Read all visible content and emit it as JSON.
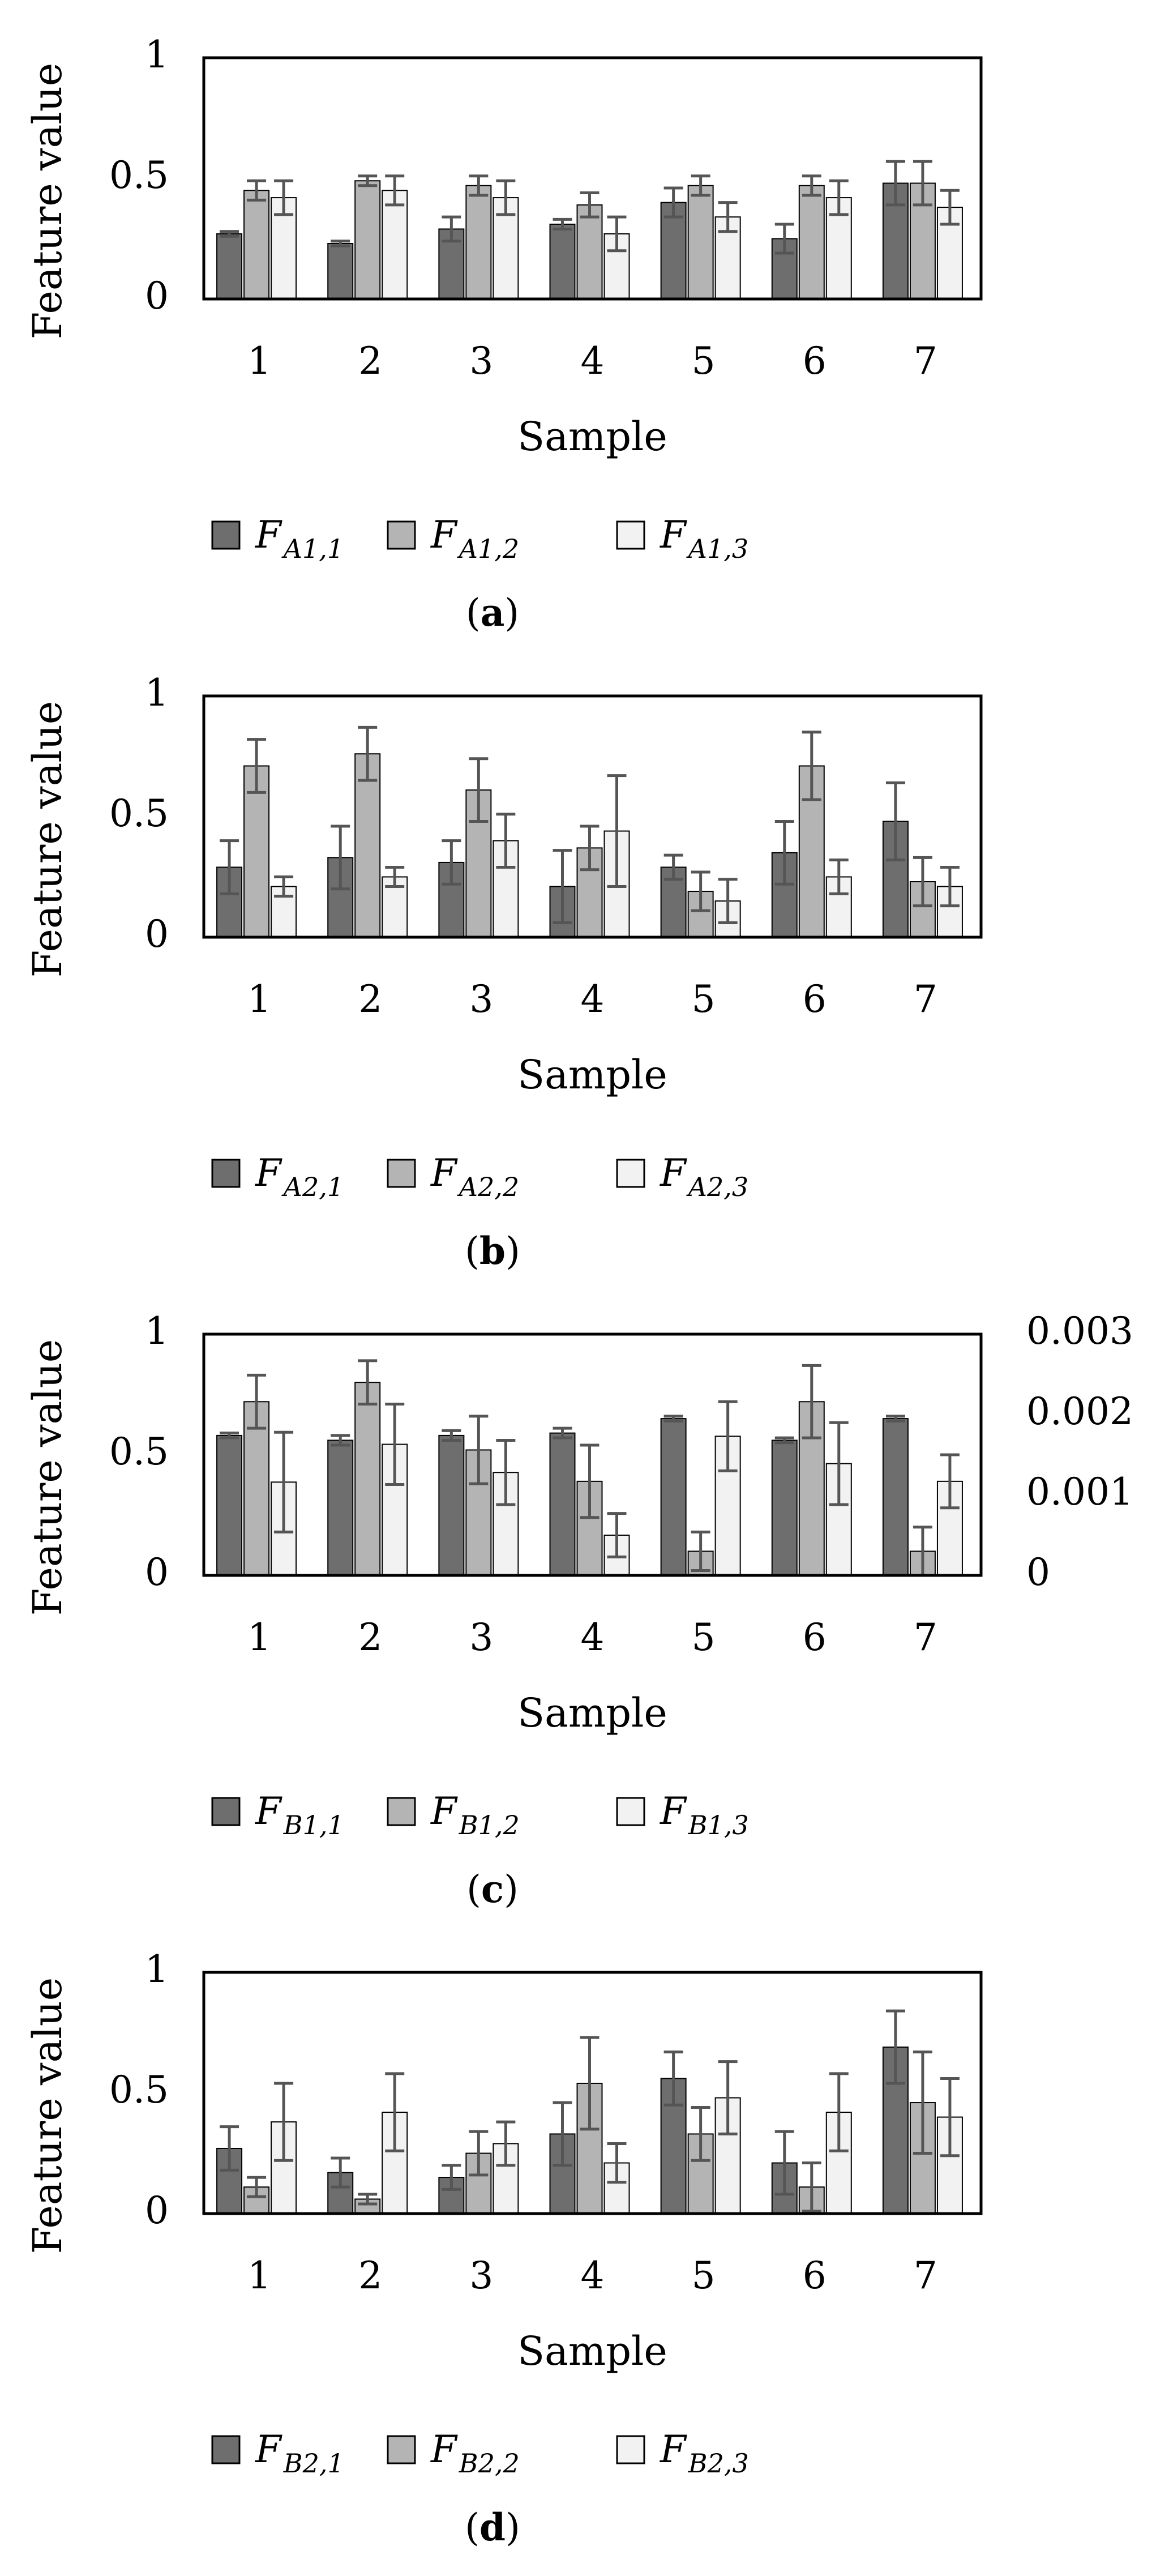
{
  "figure": {
    "captions": [
      "(a)",
      "(b)",
      "(c)",
      "(d)"
    ]
  },
  "chart_data": [
    {
      "type": "bar",
      "panel": "a",
      "caption": "(a)",
      "xlabel": "Sample",
      "ylabel": "Feature value",
      "ylim": [
        0,
        1
      ],
      "yticks": [
        "0",
        "0.5",
        "1"
      ],
      "categories": [
        "1",
        "2",
        "3",
        "4",
        "5",
        "6",
        "7"
      ],
      "series": [
        {
          "name": "F",
          "sub": "A1,1",
          "color": "#6e6e6e",
          "secondary": false,
          "values": [
            0.27,
            0.23,
            0.29,
            0.31,
            0.4,
            0.25,
            0.48
          ],
          "errors": [
            0.01,
            0.01,
            0.05,
            0.02,
            0.06,
            0.06,
            0.09
          ]
        },
        {
          "name": "F",
          "sub": "A1,2",
          "color": "#b4b4b4",
          "secondary": false,
          "values": [
            0.45,
            0.49,
            0.47,
            0.39,
            0.47,
            0.47,
            0.48
          ],
          "errors": [
            0.04,
            0.02,
            0.04,
            0.05,
            0.04,
            0.04,
            0.09
          ]
        },
        {
          "name": "F",
          "sub": "A1,3",
          "color": "#f2f2f2",
          "secondary": false,
          "values": [
            0.42,
            0.45,
            0.42,
            0.27,
            0.34,
            0.42,
            0.38
          ],
          "errors": [
            0.07,
            0.06,
            0.07,
            0.07,
            0.06,
            0.07,
            0.07
          ]
        }
      ]
    },
    {
      "type": "bar",
      "panel": "b",
      "caption": "(b)",
      "xlabel": "Sample",
      "ylabel": "Feature value",
      "ylim": [
        0,
        1
      ],
      "yticks": [
        "0",
        "0.5",
        "1"
      ],
      "categories": [
        "1",
        "2",
        "3",
        "4",
        "5",
        "6",
        "7"
      ],
      "series": [
        {
          "name": "F",
          "sub": "A2,1",
          "color": "#6e6e6e",
          "secondary": false,
          "values": [
            0.29,
            0.33,
            0.31,
            0.21,
            0.29,
            0.35,
            0.48
          ],
          "errors": [
            0.11,
            0.13,
            0.09,
            0.15,
            0.05,
            0.13,
            0.16
          ]
        },
        {
          "name": "F",
          "sub": "A2,2",
          "color": "#b4b4b4",
          "secondary": false,
          "values": [
            0.71,
            0.76,
            0.61,
            0.37,
            0.19,
            0.71,
            0.23
          ],
          "errors": [
            0.11,
            0.11,
            0.13,
            0.09,
            0.08,
            0.14,
            0.1
          ]
        },
        {
          "name": "F",
          "sub": "A2,3",
          "color": "#f2f2f2",
          "secondary": false,
          "values": [
            0.21,
            0.25,
            0.4,
            0.44,
            0.15,
            0.25,
            0.21
          ],
          "errors": [
            0.04,
            0.04,
            0.11,
            0.23,
            0.09,
            0.07,
            0.08
          ]
        }
      ]
    },
    {
      "type": "bar",
      "panel": "c",
      "caption": "(c)",
      "xlabel": "Sample",
      "ylabel": "Feature value",
      "ylim": [
        0,
        1
      ],
      "yticks": [
        "0",
        "0.5",
        "1"
      ],
      "y2lim": [
        0,
        0.003
      ],
      "y2ticks": [
        "0",
        "0.001",
        "0.002",
        "0.003"
      ],
      "categories": [
        "1",
        "2",
        "3",
        "4",
        "5",
        "6",
        "7"
      ],
      "series": [
        {
          "name": "F",
          "sub": "B1,1",
          "color": "#6e6e6e",
          "secondary": false,
          "values": [
            0.58,
            0.56,
            0.58,
            0.59,
            0.65,
            0.56,
            0.65
          ],
          "errors": [
            0.01,
            0.02,
            0.02,
            0.02,
            0.01,
            0.01,
            0.01
          ]
        },
        {
          "name": "F",
          "sub": "B1,2",
          "color": "#b4b4b4",
          "secondary": false,
          "values": [
            0.72,
            0.8,
            0.52,
            0.39,
            0.1,
            0.72,
            0.1
          ],
          "errors": [
            0.11,
            0.09,
            0.14,
            0.15,
            0.08,
            0.15,
            0.1
          ]
        },
        {
          "name": "F",
          "sub": "B1,3",
          "color": "#f2f2f2",
          "secondary": true,
          "values": [
            0.00116,
            0.00163,
            0.00128,
            0.0005,
            0.00173,
            0.00139,
            0.00117
          ],
          "errors": [
            0.00062,
            0.0005,
            0.0004,
            0.00027,
            0.00043,
            0.00051,
            0.00033
          ]
        }
      ]
    },
    {
      "type": "bar",
      "panel": "d",
      "caption": "(d)",
      "xlabel": "Sample",
      "ylabel": "Feature value",
      "ylim": [
        0,
        1
      ],
      "yticks": [
        "0",
        "0.5",
        "1"
      ],
      "categories": [
        "1",
        "2",
        "3",
        "4",
        "5",
        "6",
        "7"
      ],
      "series": [
        {
          "name": "F",
          "sub": "B2,1",
          "color": "#6e6e6e",
          "secondary": false,
          "values": [
            0.27,
            0.17,
            0.15,
            0.33,
            0.56,
            0.21,
            0.69
          ],
          "errors": [
            0.09,
            0.06,
            0.05,
            0.13,
            0.11,
            0.13,
            0.15
          ]
        },
        {
          "name": "F",
          "sub": "B2,2",
          "color": "#b4b4b4",
          "secondary": false,
          "values": [
            0.11,
            0.06,
            0.25,
            0.54,
            0.33,
            0.11,
            0.46
          ],
          "errors": [
            0.04,
            0.02,
            0.09,
            0.19,
            0.11,
            0.1,
            0.21
          ]
        },
        {
          "name": "F",
          "sub": "B2,3",
          "color": "#f2f2f2",
          "secondary": false,
          "values": [
            0.38,
            0.42,
            0.29,
            0.21,
            0.48,
            0.42,
            0.4
          ],
          "errors": [
            0.16,
            0.16,
            0.09,
            0.08,
            0.15,
            0.16,
            0.16
          ]
        }
      ]
    }
  ]
}
